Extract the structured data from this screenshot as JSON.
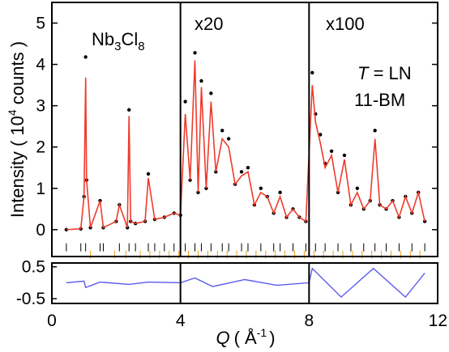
{
  "chart_data": {
    "type": "line",
    "title": "",
    "xlabel": {
      "symbol": "Q",
      "unit": "( Å",
      "unit_exp": "-1",
      "close": ")"
    },
    "ylabel": {
      "text": "Intensity ( 10",
      "exp": "4",
      "rest": " counts )"
    },
    "residual_ylabel": "",
    "xlim": [
      0,
      12
    ],
    "ylim": [
      -0.65,
      5.5
    ],
    "residual_ylim": [
      -0.65,
      0.62
    ],
    "x_ticks": [
      "0",
      "4",
      "8",
      "12"
    ],
    "y_ticks": [
      "0",
      "1",
      "2",
      "3",
      "4",
      "5"
    ],
    "residual_y_ticks": [
      "0.5",
      "-0.5"
    ],
    "region_dividers_x": [
      4,
      8
    ],
    "annotations": {
      "sample": {
        "base1": "Nb",
        "sub1": "3",
        "base2": "Cl",
        "sub2": "8"
      },
      "scale_mid": "x20",
      "scale_high": "x100",
      "temperature": {
        "symbol": "T",
        "rest": " = LN"
      },
      "instrument": "11-BM"
    },
    "series": [
      {
        "style": "observed",
        "color": "#000000",
        "x": [
          0.45,
          0.9,
          1.0,
          1.05,
          1.08,
          1.2,
          1.5,
          1.6,
          2.0,
          2.1,
          2.35,
          2.4,
          2.45,
          2.6,
          2.9,
          3.0,
          3.2,
          3.5,
          3.8,
          4.0,
          4.15,
          4.3,
          4.45,
          4.55,
          4.65,
          4.8,
          4.95,
          5.1,
          5.3,
          5.5,
          5.7,
          5.9,
          6.1,
          6.3,
          6.5,
          6.7,
          6.9,
          7.1,
          7.3,
          7.5,
          7.7,
          7.9,
          8.1,
          8.2,
          8.35,
          8.5,
          8.7,
          8.9,
          9.1,
          9.3,
          9.5,
          9.7,
          9.9,
          10.05,
          10.2,
          10.4,
          10.6,
          10.8,
          11.0,
          11.2,
          11.4,
          11.6
        ],
        "y": [
          0.0,
          0.02,
          0.8,
          4.18,
          1.2,
          0.05,
          0.7,
          0.05,
          0.2,
          0.6,
          0.05,
          2.9,
          0.2,
          0.15,
          0.2,
          1.35,
          0.25,
          0.3,
          0.4,
          0.35,
          3.1,
          1.2,
          4.28,
          0.9,
          3.6,
          1.0,
          3.3,
          1.4,
          2.4,
          2.2,
          1.1,
          1.4,
          1.5,
          0.6,
          1.0,
          0.8,
          0.4,
          0.9,
          0.3,
          0.5,
          0.3,
          0.2,
          3.8,
          2.8,
          2.3,
          1.6,
          1.9,
          0.9,
          1.8,
          0.6,
          1.0,
          0.5,
          0.7,
          2.4,
          0.6,
          0.5,
          0.7,
          0.3,
          0.8,
          0.4,
          0.9,
          0.2
        ]
      },
      {
        "style": "calculated",
        "color": "#ef3b2c",
        "x": [
          0.45,
          0.9,
          1.0,
          1.05,
          1.08,
          1.2,
          1.5,
          1.6,
          2.0,
          2.1,
          2.35,
          2.4,
          2.45,
          2.6,
          2.9,
          3.0,
          3.2,
          3.5,
          3.8,
          4.0,
          4.15,
          4.3,
          4.45,
          4.55,
          4.65,
          4.8,
          4.95,
          5.1,
          5.3,
          5.5,
          5.7,
          5.9,
          6.1,
          6.3,
          6.5,
          6.7,
          6.9,
          7.1,
          7.3,
          7.5,
          7.7,
          7.9,
          8.1,
          8.2,
          8.35,
          8.5,
          8.7,
          8.9,
          9.1,
          9.3,
          9.5,
          9.7,
          9.9,
          10.05,
          10.2,
          10.4,
          10.6,
          10.8,
          11.0,
          11.2,
          11.4,
          11.6
        ],
        "y": [
          0.0,
          0.02,
          0.8,
          3.68,
          1.2,
          0.05,
          0.7,
          0.05,
          0.2,
          0.6,
          0.05,
          2.75,
          0.2,
          0.15,
          0.2,
          1.25,
          0.25,
          0.3,
          0.4,
          0.35,
          2.8,
          1.2,
          4.1,
          0.9,
          3.45,
          1.0,
          3.1,
          1.4,
          2.2,
          2.0,
          1.1,
          1.3,
          1.4,
          0.6,
          0.9,
          0.8,
          0.4,
          0.8,
          0.3,
          0.5,
          0.3,
          0.2,
          3.5,
          2.6,
          2.1,
          1.5,
          1.8,
          0.9,
          1.7,
          0.6,
          0.9,
          0.5,
          0.7,
          2.2,
          0.6,
          0.5,
          0.7,
          0.3,
          0.8,
          0.4,
          0.9,
          0.2
        ]
      },
      {
        "style": "difference",
        "color": "#5b5bef",
        "x": [
          0.45,
          1.0,
          1.05,
          1.5,
          2.4,
          3.0,
          4.0,
          4.45,
          5.0,
          6.0,
          7.0,
          8.0,
          8.1,
          9.0,
          10.0,
          11.0,
          11.6
        ],
        "y": [
          0.0,
          0.05,
          -0.15,
          0.02,
          -0.05,
          0.02,
          0.0,
          0.15,
          -0.12,
          0.1,
          -0.08,
          0.0,
          0.45,
          -0.45,
          0.45,
          -0.45,
          0.3
        ]
      },
      {
        "style": "reflection_ticks",
        "color": "#000000",
        "positions_desc": "phase 1 tick marks",
        "x": [
          0.45,
          0.9,
          1.05,
          1.5,
          1.6,
          2.1,
          2.4,
          2.6,
          3.0,
          3.2,
          3.5,
          3.8,
          4.15,
          4.45,
          4.65,
          4.95,
          5.3,
          5.5,
          5.9,
          6.1,
          6.5,
          6.9,
          7.1,
          7.5,
          7.9,
          8.2,
          8.5,
          8.9,
          9.3,
          9.7,
          10.05,
          10.4,
          10.8,
          11.2,
          11.6
        ]
      },
      {
        "style": "reflection_ticks",
        "color": "#f39c12",
        "positions_desc": "phase 2 tick marks",
        "x": [
          1.2,
          1.95,
          2.3,
          2.75,
          3.05,
          3.35,
          3.65,
          3.95,
          4.25,
          4.55,
          4.85,
          5.15,
          5.45,
          5.75,
          6.05,
          6.35,
          6.65,
          6.95,
          7.25,
          7.55,
          7.85,
          8.15,
          8.45,
          8.75,
          9.05,
          9.35,
          9.65,
          9.95,
          10.25,
          10.55,
          10.85,
          11.15,
          11.45
        ]
      }
    ]
  }
}
